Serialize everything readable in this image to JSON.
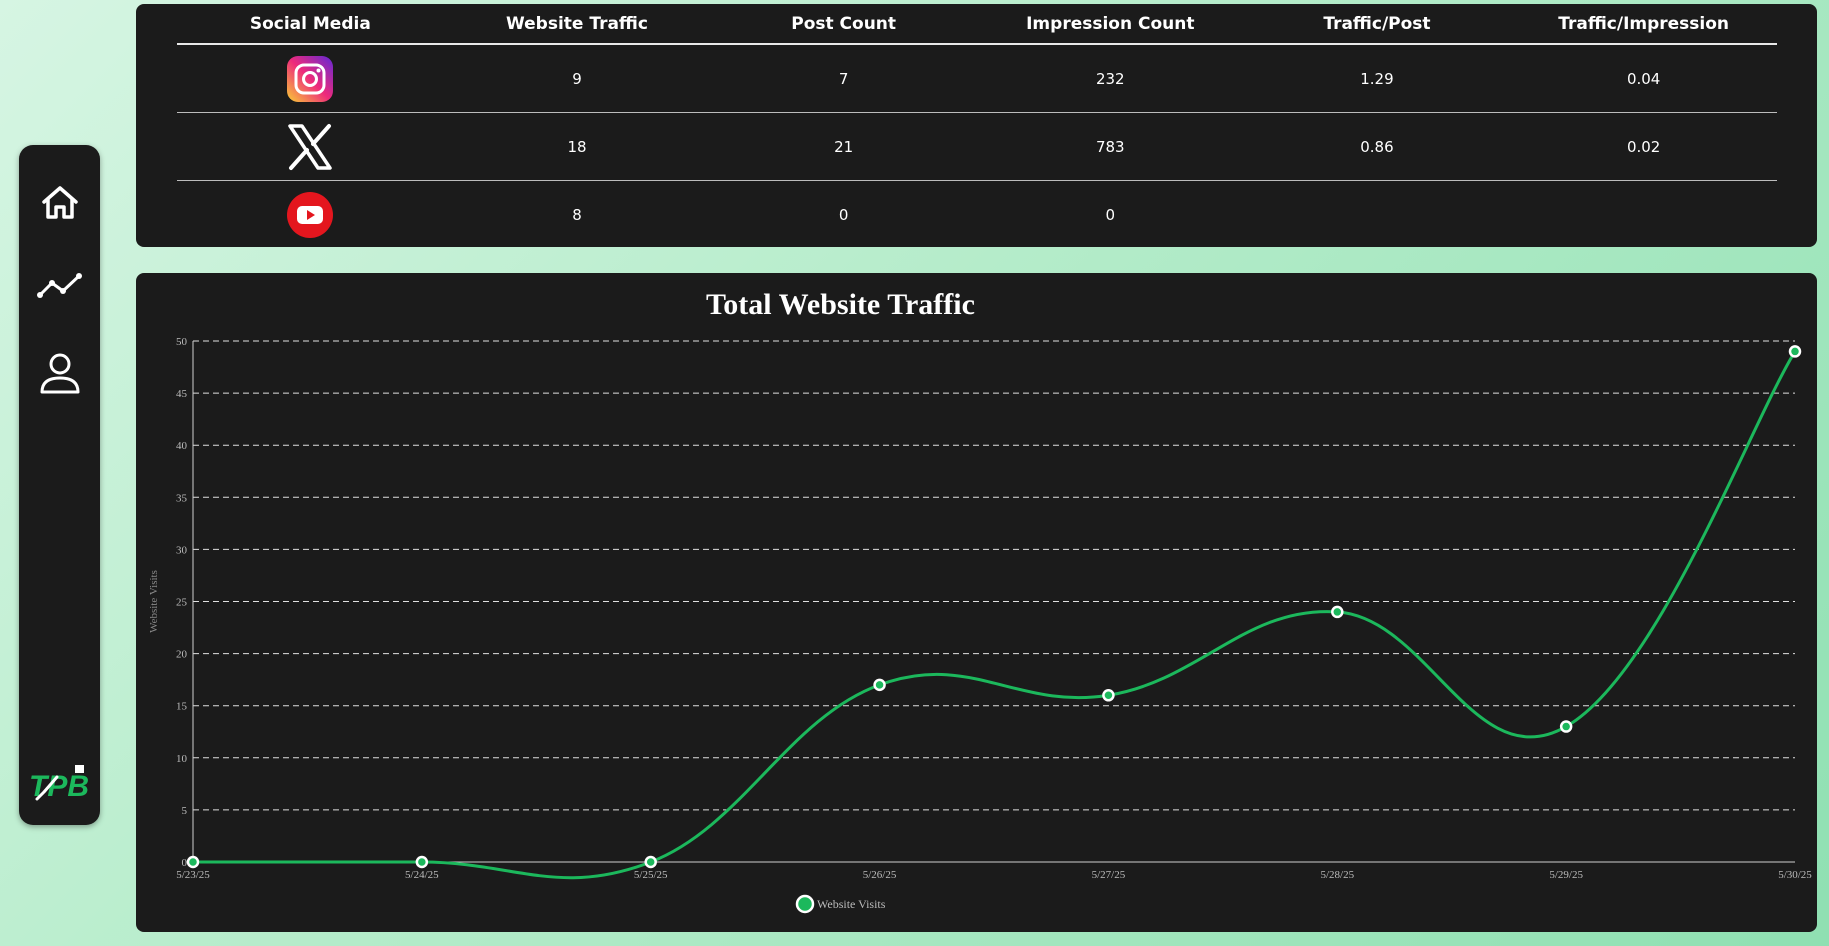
{
  "nav": {
    "items": [
      {
        "name": "home",
        "icon": "home-icon"
      },
      {
        "name": "analytics",
        "icon": "line-chart-icon"
      },
      {
        "name": "profile",
        "icon": "user-icon"
      }
    ],
    "logo_text": "TPB"
  },
  "traffic_table": {
    "headers": [
      "Social Media",
      "Website Traffic",
      "Post Count",
      "Impression Count",
      "Traffic/Post",
      "Traffic/Impression"
    ],
    "rows": [
      {
        "platform_icon": "instagram-icon",
        "website_traffic": "9",
        "post_count": "7",
        "impression_count": "232",
        "traffic_per_post": "1.29",
        "traffic_per_impression": "0.04"
      },
      {
        "platform_icon": "x-icon",
        "website_traffic": "18",
        "post_count": "21",
        "impression_count": "783",
        "traffic_per_post": "0.86",
        "traffic_per_impression": "0.02"
      },
      {
        "platform_icon": "youtube-icon",
        "website_traffic": "8",
        "post_count": "0",
        "impression_count": "0",
        "traffic_per_post": "",
        "traffic_per_impression": ""
      }
    ]
  },
  "chart_data": {
    "type": "line",
    "title": "Total Website Traffic",
    "xlabel": "",
    "ylabel": "Website Visits",
    "categories": [
      "5/23/25",
      "5/24/25",
      "5/25/25",
      "5/26/25",
      "5/27/25",
      "5/28/25",
      "5/29/25",
      "5/30/25"
    ],
    "series": [
      {
        "name": "Website Visits",
        "values": [
          0,
          0,
          0,
          17,
          16,
          24,
          13,
          49
        ],
        "color": "#1cb85c"
      }
    ],
    "ylim": [
      0,
      50
    ],
    "yticks": [
      0,
      5,
      10,
      15,
      20,
      25,
      30,
      35,
      40,
      45,
      50
    ],
    "grid": true,
    "legend": "bottom-center"
  },
  "colors": {
    "accent": "#1cb85c",
    "panel": "#1b1b1b",
    "instagram_gradient": [
      "#f9ce34",
      "#ee2a7b",
      "#6228d7"
    ],
    "youtube": "#e4161e"
  }
}
